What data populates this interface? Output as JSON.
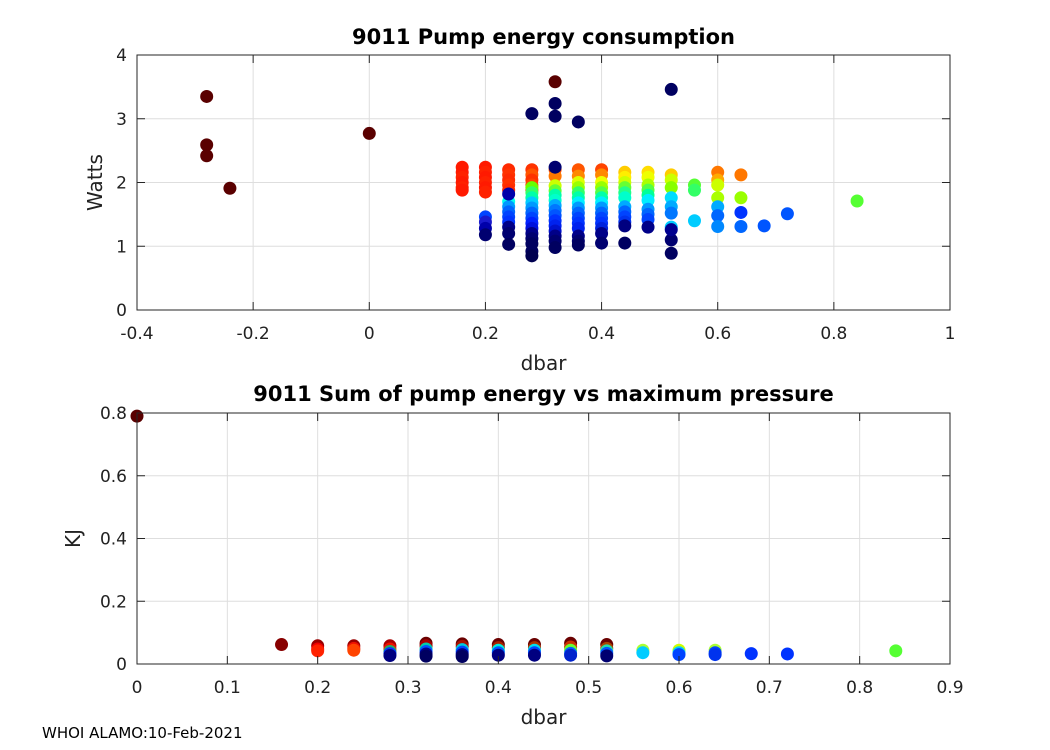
{
  "footer": "WHOI ALAMO:10-Feb-2021",
  "chart_data": [
    {
      "type": "scatter",
      "title": "9011 Pump energy consumption",
      "xlabel": "dbar",
      "ylabel": "Watts",
      "xlim": [
        -0.4,
        1
      ],
      "ylim": [
        0,
        4
      ],
      "xticks": [
        -0.4,
        -0.2,
        0,
        0.2,
        0.4,
        0.6,
        0.8,
        1
      ],
      "xtick_labels": [
        "-0.4",
        "-0.2",
        "0",
        "0.2",
        "0.4",
        "0.6",
        "0.8",
        "1"
      ],
      "yticks": [
        0,
        1,
        2,
        3,
        4
      ],
      "ytick_labels": [
        "0",
        "1",
        "2",
        "3",
        "4"
      ],
      "grid": true,
      "points": [
        [
          -0.28,
          3.35,
          "#5a0000"
        ],
        [
          -0.28,
          2.59,
          "#5a0000"
        ],
        [
          -0.28,
          2.42,
          "#5a0000"
        ],
        [
          -0.24,
          1.91,
          "#5a0000"
        ],
        [
          0,
          2.77,
          "#5a0000"
        ],
        [
          0.32,
          3.58,
          "#5a0000"
        ],
        [
          0.28,
          3.08,
          "#000060"
        ],
        [
          0.32,
          3.24,
          "#000060"
        ],
        [
          0.32,
          3.04,
          "#000060"
        ],
        [
          0.36,
          2.95,
          "#000060"
        ],
        [
          0.52,
          3.46,
          "#000060"
        ],
        [
          0.16,
          2.24,
          "#ff1a00"
        ],
        [
          0.16,
          2.16,
          "#ff1a00"
        ],
        [
          0.16,
          2.08,
          "#ff2200"
        ],
        [
          0.16,
          2.0,
          "#ff1a00"
        ],
        [
          0.16,
          1.92,
          "#ff2200"
        ],
        [
          0.16,
          1.88,
          "#ff1a00"
        ],
        [
          0.2,
          2.24,
          "#ff1a00"
        ],
        [
          0.2,
          2.16,
          "#ff2200"
        ],
        [
          0.2,
          2.08,
          "#ff1a00"
        ],
        [
          0.2,
          2.0,
          "#ff2200"
        ],
        [
          0.2,
          1.92,
          "#ff1a00"
        ],
        [
          0.2,
          1.85,
          "#ff2200"
        ],
        [
          0.24,
          2.2,
          "#ff2a00"
        ],
        [
          0.24,
          2.12,
          "#ff3300"
        ],
        [
          0.24,
          2.04,
          "#ff2a00"
        ],
        [
          0.24,
          1.96,
          "#ff3300"
        ],
        [
          0.24,
          1.88,
          "#ff2a00"
        ],
        [
          0.28,
          2.2,
          "#ff3300"
        ],
        [
          0.28,
          2.12,
          "#ff5500"
        ],
        [
          0.28,
          2.04,
          "#ff3300"
        ],
        [
          0.28,
          1.96,
          "#ff4400"
        ],
        [
          0.28,
          1.88,
          "#ff3300"
        ],
        [
          0.32,
          2.2,
          "#ff5500"
        ],
        [
          0.32,
          2.1,
          "#ff7700"
        ],
        [
          0.36,
          2.2,
          "#ff5500"
        ],
        [
          0.36,
          2.1,
          "#ff8800"
        ],
        [
          0.4,
          2.2,
          "#ff4400"
        ],
        [
          0.4,
          2.12,
          "#ff8800"
        ],
        [
          0.44,
          2.16,
          "#ffcc00"
        ],
        [
          0.44,
          2.08,
          "#ffee00"
        ],
        [
          0.48,
          2.16,
          "#ffdd00"
        ],
        [
          0.48,
          2.08,
          "#eeff00"
        ],
        [
          0.52,
          2.12,
          "#ffcc00"
        ],
        [
          0.52,
          2.04,
          "#ccff00"
        ],
        [
          0.6,
          2.16,
          "#ff7700"
        ],
        [
          0.6,
          2.04,
          "#ffaa00"
        ],
        [
          0.6,
          1.96,
          "#ccff00"
        ],
        [
          0.64,
          2.12,
          "#ff7700"
        ],
        [
          0.56,
          1.96,
          "#55ff33"
        ],
        [
          0.56,
          1.88,
          "#33ff66"
        ],
        [
          0.6,
          1.76,
          "#aaff00"
        ],
        [
          0.64,
          1.76,
          "#99ff00"
        ],
        [
          0.84,
          1.71,
          "#55ff33"
        ],
        [
          0.28,
          1.92,
          "#66ff00"
        ],
        [
          0.28,
          1.84,
          "#33ff66"
        ],
        [
          0.28,
          1.76,
          "#00ffaa"
        ],
        [
          0.32,
          1.95,
          "#ccff00"
        ],
        [
          0.32,
          1.87,
          "#66ff33"
        ],
        [
          0.32,
          1.8,
          "#00ffaa"
        ],
        [
          0.32,
          1.72,
          "#00ffcc"
        ],
        [
          0.36,
          2.0,
          "#ddff00"
        ],
        [
          0.36,
          1.92,
          "#99ff00"
        ],
        [
          0.36,
          1.84,
          "#33ff66"
        ],
        [
          0.36,
          1.76,
          "#00ffaa"
        ],
        [
          0.36,
          1.68,
          "#00eeff"
        ],
        [
          0.4,
          2.0,
          "#eeff00"
        ],
        [
          0.4,
          1.92,
          "#99ff00"
        ],
        [
          0.4,
          1.84,
          "#55ff44"
        ],
        [
          0.4,
          1.76,
          "#00ffaa"
        ],
        [
          0.4,
          1.68,
          "#00eeff"
        ],
        [
          0.44,
          2.0,
          "#ccff00"
        ],
        [
          0.44,
          1.92,
          "#66ff33"
        ],
        [
          0.44,
          1.84,
          "#22ff88"
        ],
        [
          0.44,
          1.76,
          "#00ffcc"
        ],
        [
          0.48,
          1.96,
          "#aaff00"
        ],
        [
          0.48,
          1.88,
          "#55ff44"
        ],
        [
          0.48,
          1.8,
          "#00ff99"
        ],
        [
          0.48,
          1.72,
          "#00eeff"
        ],
        [
          0.52,
          1.92,
          "#88ff00"
        ],
        [
          0.52,
          1.76,
          "#00ddff"
        ],
        [
          0.56,
          1.4,
          "#00ccff"
        ],
        [
          0.24,
          1.7,
          "#00ffee"
        ],
        [
          0.28,
          1.68,
          "#00ccff"
        ],
        [
          0.24,
          1.62,
          "#0099ff"
        ],
        [
          0.24,
          1.54,
          "#0066ff"
        ],
        [
          0.24,
          1.46,
          "#0044ff"
        ],
        [
          0.24,
          1.38,
          "#0033ff"
        ],
        [
          0.28,
          1.6,
          "#0099ff"
        ],
        [
          0.28,
          1.52,
          "#0066ff"
        ],
        [
          0.28,
          1.44,
          "#0044ff"
        ],
        [
          0.28,
          1.36,
          "#0022ff"
        ],
        [
          0.28,
          1.28,
          "#0011dd"
        ],
        [
          0.32,
          1.64,
          "#00aaff"
        ],
        [
          0.32,
          1.56,
          "#0077ff"
        ],
        [
          0.32,
          1.48,
          "#0055ff"
        ],
        [
          0.32,
          1.4,
          "#0033ff"
        ],
        [
          0.32,
          1.32,
          "#0022ee"
        ],
        [
          0.32,
          1.24,
          "#0011cc"
        ],
        [
          0.36,
          1.6,
          "#0099ff"
        ],
        [
          0.36,
          1.52,
          "#0066ff"
        ],
        [
          0.36,
          1.44,
          "#0044ff"
        ],
        [
          0.36,
          1.36,
          "#0033ff"
        ],
        [
          0.36,
          1.28,
          "#0022ee"
        ],
        [
          0.4,
          1.6,
          "#0099ff"
        ],
        [
          0.4,
          1.52,
          "#0066ff"
        ],
        [
          0.4,
          1.44,
          "#0044ff"
        ],
        [
          0.4,
          1.36,
          "#0033ff"
        ],
        [
          0.4,
          1.28,
          "#0022dd"
        ],
        [
          0.44,
          1.62,
          "#00aaff"
        ],
        [
          0.44,
          1.54,
          "#0066ff"
        ],
        [
          0.44,
          1.46,
          "#0044ff"
        ],
        [
          0.44,
          1.38,
          "#0033ee"
        ],
        [
          0.48,
          1.58,
          "#0099ff"
        ],
        [
          0.48,
          1.5,
          "#0066ff"
        ],
        [
          0.48,
          1.42,
          "#0044ff"
        ],
        [
          0.52,
          1.62,
          "#00aaff"
        ],
        [
          0.52,
          1.52,
          "#0077ff"
        ],
        [
          0.52,
          1.3,
          "#00ccff"
        ],
        [
          0.6,
          1.62,
          "#00aaff"
        ],
        [
          0.6,
          1.48,
          "#0066ff"
        ],
        [
          0.6,
          1.31,
          "#0088ff"
        ],
        [
          0.64,
          1.31,
          "#0066ff"
        ],
        [
          0.64,
          1.53,
          "#0033ff"
        ],
        [
          0.68,
          1.32,
          "#0055ff"
        ],
        [
          0.72,
          1.51,
          "#0055ff"
        ],
        [
          0.2,
          1.46,
          "#0044ff"
        ],
        [
          0.2,
          1.38,
          "#1a1acc"
        ],
        [
          0.2,
          1.28,
          "#0000aa"
        ],
        [
          0.2,
          1.18,
          "#000070"
        ],
        [
          0.24,
          1.82,
          "#0000aa"
        ],
        [
          0.24,
          1.3,
          "#000088"
        ],
        [
          0.24,
          1.2,
          "#000070"
        ],
        [
          0.24,
          1.03,
          "#000060"
        ],
        [
          0.28,
          1.2,
          "#000088"
        ],
        [
          0.28,
          1.12,
          "#000070"
        ],
        [
          0.28,
          1.04,
          "#000060"
        ],
        [
          0.28,
          0.92,
          "#000060"
        ],
        [
          0.28,
          0.85,
          "#000050"
        ],
        [
          0.32,
          2.24,
          "#000070"
        ],
        [
          0.32,
          1.16,
          "#000088"
        ],
        [
          0.32,
          1.08,
          "#000070"
        ],
        [
          0.32,
          0.98,
          "#000060"
        ],
        [
          0.36,
          1.16,
          "#000088"
        ],
        [
          0.36,
          1.08,
          "#000070"
        ],
        [
          0.36,
          1.02,
          "#000060"
        ],
        [
          0.4,
          1.2,
          "#000088"
        ],
        [
          0.4,
          1.05,
          "#000070"
        ],
        [
          0.44,
          1.32,
          "#000080"
        ],
        [
          0.44,
          1.05,
          "#000060"
        ],
        [
          0.48,
          1.3,
          "#000088"
        ],
        [
          0.52,
          1.1,
          "#000070"
        ],
        [
          0.52,
          0.89,
          "#000060"
        ],
        [
          0.52,
          1.26,
          "#000090"
        ]
      ]
    },
    {
      "type": "scatter",
      "title": "9011 Sum of pump energy vs maximum pressure",
      "xlabel": "dbar",
      "ylabel": "KJ",
      "xlim": [
        0,
        0.9
      ],
      "ylim": [
        0,
        0.8
      ],
      "xticks": [
        0,
        0.1,
        0.2,
        0.3,
        0.4,
        0.5,
        0.6,
        0.7,
        0.8,
        0.9
      ],
      "xtick_labels": [
        "0",
        "0.1",
        "0.2",
        "0.3",
        "0.4",
        "0.5",
        "0.6",
        "0.7",
        "0.8",
        "0.9"
      ],
      "yticks": [
        0,
        0.2,
        0.4,
        0.6,
        0.8
      ],
      "ytick_labels": [
        "0",
        "0.2",
        "0.4",
        "0.6",
        "0.8"
      ],
      "grid": true,
      "points": [
        [
          0,
          0.79,
          "#5a0000"
        ],
        [
          0.16,
          0.062,
          "#880000"
        ],
        [
          0.2,
          0.058,
          "#990000"
        ],
        [
          0.2,
          0.048,
          "#ee0000"
        ],
        [
          0.2,
          0.042,
          "#ff2200"
        ],
        [
          0.24,
          0.058,
          "#990000"
        ],
        [
          0.24,
          0.05,
          "#ee1100"
        ],
        [
          0.24,
          0.044,
          "#ff4400"
        ],
        [
          0.28,
          0.058,
          "#aa0000"
        ],
        [
          0.28,
          0.048,
          "#ee1100"
        ],
        [
          0.28,
          0.04,
          "#22aa66"
        ],
        [
          0.28,
          0.033,
          "#0033ff"
        ],
        [
          0.28,
          0.027,
          "#000080"
        ],
        [
          0.32,
          0.066,
          "#6a0000"
        ],
        [
          0.32,
          0.058,
          "#aa0000"
        ],
        [
          0.32,
          0.048,
          "#00ccaa"
        ],
        [
          0.32,
          0.04,
          "#0055ff"
        ],
        [
          0.32,
          0.032,
          "#000088"
        ],
        [
          0.32,
          0.025,
          "#000060"
        ],
        [
          0.36,
          0.064,
          "#6a0000"
        ],
        [
          0.36,
          0.056,
          "#aa1100"
        ],
        [
          0.36,
          0.046,
          "#00ccdd"
        ],
        [
          0.36,
          0.038,
          "#0044ff"
        ],
        [
          0.36,
          0.03,
          "#000088"
        ],
        [
          0.36,
          0.024,
          "#000060"
        ],
        [
          0.4,
          0.062,
          "#6a0000"
        ],
        [
          0.4,
          0.052,
          "#aa2200"
        ],
        [
          0.4,
          0.044,
          "#00eedd"
        ],
        [
          0.4,
          0.036,
          "#0055ff"
        ],
        [
          0.4,
          0.028,
          "#000080"
        ],
        [
          0.44,
          0.062,
          "#6a0000"
        ],
        [
          0.44,
          0.052,
          "#aa3300"
        ],
        [
          0.44,
          0.044,
          "#00ddee"
        ],
        [
          0.44,
          0.036,
          "#0044ff"
        ],
        [
          0.44,
          0.028,
          "#000080"
        ],
        [
          0.48,
          0.066,
          "#6a0000"
        ],
        [
          0.48,
          0.054,
          "#cc3300"
        ],
        [
          0.48,
          0.044,
          "#66ff33"
        ],
        [
          0.48,
          0.034,
          "#0066ff"
        ],
        [
          0.48,
          0.028,
          "#0022cc"
        ],
        [
          0.52,
          0.062,
          "#6a0000"
        ],
        [
          0.52,
          0.05,
          "#aa4400"
        ],
        [
          0.52,
          0.042,
          "#22ddaa"
        ],
        [
          0.52,
          0.034,
          "#0055ff"
        ],
        [
          0.52,
          0.026,
          "#000070"
        ],
        [
          0.56,
          0.044,
          "#aaff33"
        ],
        [
          0.56,
          0.036,
          "#00ccff"
        ],
        [
          0.6,
          0.044,
          "#ccff00"
        ],
        [
          0.6,
          0.036,
          "#00ccff"
        ],
        [
          0.6,
          0.03,
          "#0044ff"
        ],
        [
          0.64,
          0.044,
          "#aaff33"
        ],
        [
          0.64,
          0.036,
          "#0044ff"
        ],
        [
          0.64,
          0.03,
          "#0033ee"
        ],
        [
          0.68,
          0.033,
          "#0033ff"
        ],
        [
          0.72,
          0.032,
          "#0033ff"
        ],
        [
          0.84,
          0.042,
          "#55ff33"
        ]
      ]
    }
  ]
}
